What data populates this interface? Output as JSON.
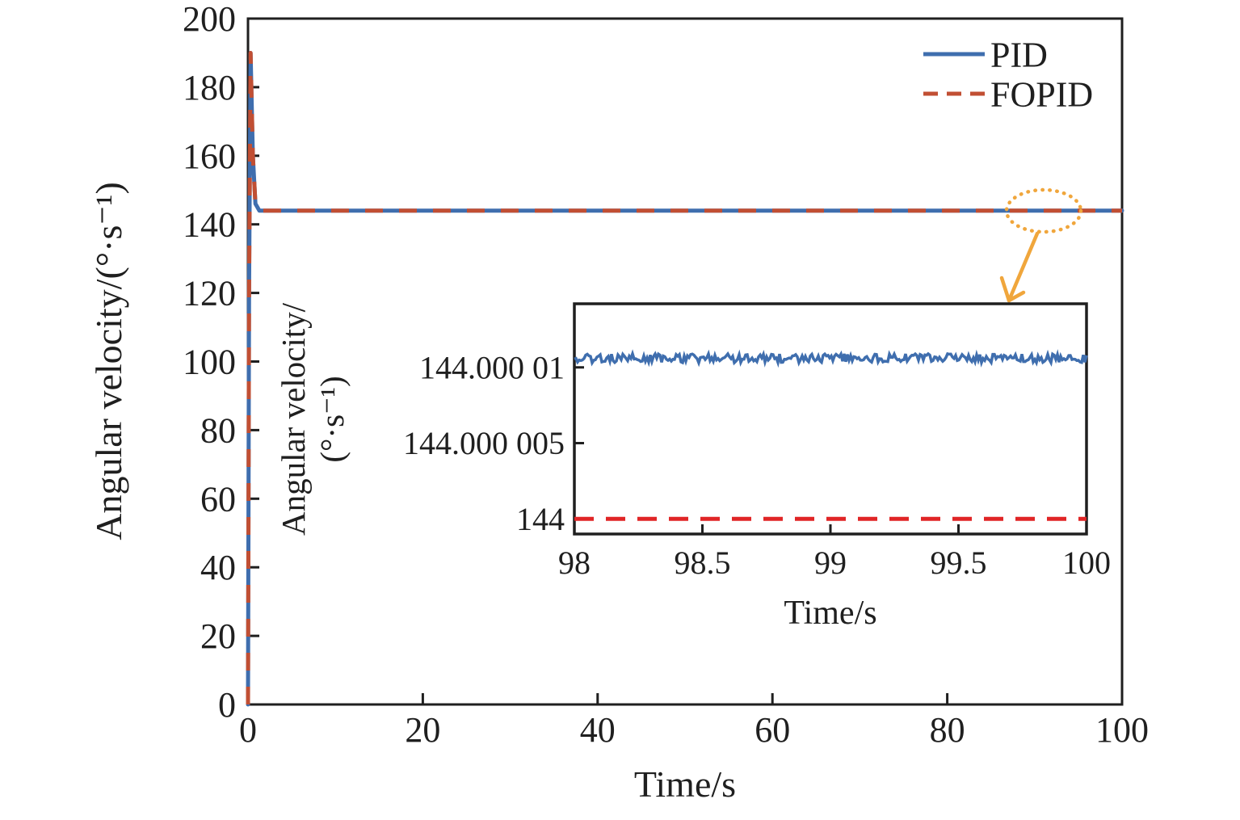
{
  "figure": {
    "background": "#ffffff",
    "ink_color": "#1f1f1f",
    "zoom_callout": {
      "shape": "dotted-ellipse-with-arrow",
      "color": "#f0a63c",
      "points_to": "inset"
    }
  },
  "chart_data": [
    {
      "id": "main",
      "type": "line",
      "title": "",
      "xlabel": "Time/s",
      "ylabel": "Angular velocity/(°·s⁻¹)",
      "xlim": [
        0,
        100
      ],
      "ylim": [
        0,
        200
      ],
      "xticks": [
        0,
        20,
        40,
        60,
        80,
        100
      ],
      "yticks": [
        0,
        20,
        40,
        60,
        80,
        100,
        120,
        140,
        160,
        180,
        200
      ],
      "grid": false,
      "legend_position": "top-right-inside",
      "series": [
        {
          "name": "PID",
          "color": "#3f6eae",
          "style": "solid",
          "x": [
            0,
            0.12,
            0.3,
            0.55,
            0.85,
            1.3,
            100
          ],
          "y": [
            0,
            120,
            190,
            160,
            146,
            144,
            144
          ],
          "peak_value": 190,
          "steady_state_value": 144
        },
        {
          "name": "FOPID",
          "color": "#c14f33",
          "style": "dashed",
          "x": [
            0,
            0.12,
            0.3,
            0.55,
            0.85,
            1.3,
            100
          ],
          "y": [
            0,
            120,
            190,
            160,
            146,
            144,
            144
          ],
          "peak_value": 190,
          "steady_state_value": 144
        }
      ]
    },
    {
      "id": "inset",
      "type": "line",
      "title": "",
      "xlabel": "Time/s",
      "ylabel_lines": [
        "Angular velocity/",
        "(°·s⁻¹)"
      ],
      "xlim": [
        98,
        100
      ],
      "ylim": [
        143.999999,
        144.0000142
      ],
      "xticks": [
        98,
        98.5,
        99,
        99.5,
        100
      ],
      "xtick_labels": [
        "98",
        "98.5",
        "99",
        "99.5",
        "100"
      ],
      "yticks": [
        144,
        144.000005,
        144.00001
      ],
      "ytick_labels": [
        "144",
        "144.000 005",
        "144.000 01"
      ],
      "grid": false,
      "series": [
        {
          "name": "PID",
          "color": "#3f6eae",
          "style": "solid-noisy",
          "value": 144.0000106,
          "noise_amplitude": 3e-07
        },
        {
          "name": "FOPID",
          "color": "#e02526",
          "style": "dashed",
          "value": 144.0
        }
      ]
    }
  ]
}
